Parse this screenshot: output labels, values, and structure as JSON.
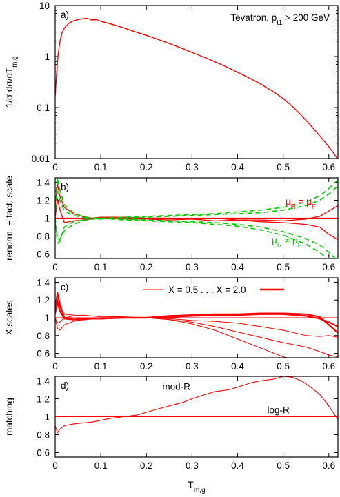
{
  "chart_data": [
    {
      "panel": "a",
      "type": "line",
      "scale": "log",
      "panel_label": "a)",
      "annotation": "Tevatron, p_t1 > 200 GeV",
      "ylabel": "1/σ  dσ/dT_m,g",
      "xlim": [
        0,
        0.62
      ],
      "ylim": [
        0.01,
        10
      ],
      "xticks": [
        0,
        0.1,
        0.2,
        0.3,
        0.4,
        0.5,
        0.6
      ],
      "xtick_labels": [
        "0",
        "0.1",
        "0.2",
        "0.3",
        "0.4",
        "0.5",
        "0.6"
      ],
      "yticks": [
        0.01,
        0.1,
        1,
        10
      ],
      "ytick_labels": [
        "0.01",
        "0.1",
        "1",
        "10"
      ],
      "series": [
        {
          "color": "#ff0000",
          "x": [
            0.0,
            0.003,
            0.006,
            0.01,
            0.015,
            0.02,
            0.03,
            0.04,
            0.05,
            0.06,
            0.07,
            0.08,
            0.09,
            0.1,
            0.12,
            0.14,
            0.16,
            0.18,
            0.2,
            0.22,
            0.25,
            0.28,
            0.3,
            0.33,
            0.35,
            0.38,
            0.4,
            0.43,
            0.45,
            0.48,
            0.5,
            0.52,
            0.54,
            0.56,
            0.58,
            0.6,
            0.61,
            0.62
          ],
          "values": [
            0.17,
            0.45,
            1.0,
            1.9,
            2.9,
            3.6,
            4.5,
            5.0,
            5.3,
            5.5,
            5.6,
            5.2,
            5.3,
            4.9,
            4.4,
            3.9,
            3.4,
            2.95,
            2.6,
            2.25,
            1.8,
            1.42,
            1.2,
            0.94,
            0.79,
            0.6,
            0.49,
            0.36,
            0.29,
            0.2,
            0.15,
            0.105,
            0.07,
            0.045,
            0.028,
            0.017,
            0.013,
            0.0095
          ]
        }
      ]
    },
    {
      "panel": "b",
      "type": "line",
      "panel_label": "b)",
      "ylabel": "renorm. + fact. scale",
      "annotations": [
        {
          "text": "μR = μF",
          "color": "#ff0000",
          "x": 0.505,
          "y": 1.15
        },
        {
          "text": "μR ≠ μF",
          "color": "#00cc00",
          "x": 0.475,
          "y": 0.72
        }
      ],
      "xlim": [
        0,
        0.62
      ],
      "ylim": [
        0.55,
        1.45
      ],
      "xticks": [
        0,
        0.1,
        0.2,
        0.3,
        0.4,
        0.5,
        0.6
      ],
      "xtick_labels": [
        "0",
        "0.1",
        "0.2",
        "0.3",
        "0.4",
        "0.5",
        "0.6"
      ],
      "yticks": [
        0.6,
        0.8,
        1,
        1.2,
        1.4
      ],
      "ytick_labels": [
        "0.6",
        "0.8",
        "1",
        "1.2",
        "1.4"
      ],
      "series": [
        {
          "color": "#ff0000",
          "dash": "",
          "width": 1.3,
          "x": [
            0,
            0.62
          ],
          "values": [
            1,
            1
          ]
        },
        {
          "color": "#ff0000",
          "dash": "",
          "width": 1.3,
          "x": [
            0.0,
            0.005,
            0.01,
            0.02,
            0.04,
            0.06,
            0.08,
            0.1,
            0.15,
            0.2,
            0.25,
            0.3,
            0.35,
            0.4,
            0.45,
            0.5,
            0.55,
            0.58,
            0.6,
            0.62
          ],
          "values": [
            1.15,
            1.38,
            1.25,
            1.12,
            1.05,
            1.02,
            1.0,
            1.01,
            1.01,
            1.0,
            1.0,
            0.99,
            1.0,
            0.98,
            0.98,
            0.97,
            0.99,
            1.02,
            1.08,
            1.14
          ]
        },
        {
          "color": "#ff0000",
          "dash": "",
          "width": 1.3,
          "x": [
            0.0,
            0.005,
            0.01,
            0.02,
            0.04,
            0.06,
            0.08,
            0.1,
            0.15,
            0.2,
            0.25,
            0.3,
            0.35,
            0.4,
            0.45,
            0.5,
            0.55,
            0.58,
            0.6,
            0.62
          ],
          "values": [
            1.0,
            1.22,
            1.1,
            0.95,
            0.97,
            0.98,
            0.99,
            1.0,
            0.99,
            0.99,
            0.98,
            0.99,
            0.97,
            0.98,
            0.96,
            0.95,
            0.93,
            0.9,
            0.82,
            0.76
          ]
        },
        {
          "color": "#00cc00",
          "dash": "7,5",
          "width": 1.6,
          "x": [
            0.0,
            0.005,
            0.01,
            0.02,
            0.04,
            0.06,
            0.08,
            0.1,
            0.15,
            0.2,
            0.25,
            0.3,
            0.35,
            0.4,
            0.45,
            0.5,
            0.55,
            0.58,
            0.6,
            0.62
          ],
          "values": [
            1.2,
            1.45,
            1.32,
            1.15,
            1.06,
            1.02,
            1.0,
            1.0,
            1.01,
            1.02,
            1.03,
            1.04,
            1.05,
            1.07,
            1.09,
            1.12,
            1.18,
            1.25,
            1.33,
            1.43
          ]
        },
        {
          "color": "#00cc00",
          "dash": "7,5",
          "width": 1.6,
          "x": [
            0.0,
            0.005,
            0.01,
            0.02,
            0.04,
            0.06,
            0.08,
            0.1,
            0.15,
            0.2,
            0.25,
            0.3,
            0.35,
            0.4,
            0.45,
            0.5,
            0.55,
            0.58,
            0.6,
            0.62
          ],
          "values": [
            1.1,
            1.3,
            1.2,
            1.08,
            1.03,
            1.01,
            0.99,
            0.99,
            1.0,
            1.01,
            1.02,
            1.03,
            1.04,
            1.05,
            1.06,
            1.09,
            1.14,
            1.2,
            1.27,
            1.36
          ]
        },
        {
          "color": "#00cc00",
          "dash": "7,5",
          "width": 1.6,
          "x": [
            0.0,
            0.005,
            0.01,
            0.02,
            0.04,
            0.06,
            0.08,
            0.1,
            0.15,
            0.2,
            0.25,
            0.3,
            0.35,
            0.4,
            0.45,
            0.5,
            0.55,
            0.58,
            0.6,
            0.62
          ],
          "values": [
            0.95,
            0.78,
            0.76,
            0.86,
            0.93,
            0.97,
            0.99,
            1.0,
            0.99,
            0.98,
            0.97,
            0.96,
            0.95,
            0.93,
            0.9,
            0.85,
            0.77,
            0.7,
            0.62,
            0.52
          ]
        },
        {
          "color": "#00cc00",
          "dash": "7,5",
          "width": 1.6,
          "x": [
            0.0,
            0.005,
            0.01,
            0.02,
            0.04,
            0.06,
            0.08,
            0.1,
            0.15,
            0.2,
            0.25,
            0.3,
            0.35,
            0.4,
            0.45,
            0.5,
            0.55,
            0.58,
            0.6,
            0.62
          ],
          "values": [
            1.0,
            0.72,
            0.74,
            0.9,
            0.96,
            0.98,
            1.0,
            1.0,
            0.98,
            0.97,
            0.96,
            0.95,
            0.93,
            0.91,
            0.87,
            0.81,
            0.71,
            0.62,
            0.53,
            0.42
          ]
        }
      ]
    },
    {
      "panel": "c",
      "type": "line",
      "panel_label": "c)",
      "ylabel": "X scales",
      "legend": {
        "label": "X = 0.5 . . . X = 2.0",
        "position": "top"
      },
      "xlim": [
        0,
        0.62
      ],
      "ylim": [
        0.55,
        1.45
      ],
      "xticks": [
        0,
        0.1,
        0.2,
        0.3,
        0.4,
        0.5,
        0.6
      ],
      "xtick_labels": [
        "0",
        "0.1",
        "0.2",
        "0.3",
        "0.4",
        "0.5",
        "0.6"
      ],
      "yticks": [
        0.6,
        0.8,
        1,
        1.2,
        1.4
      ],
      "ytick_labels": [
        "0.6",
        "0.8",
        "1",
        "1.2",
        "1.4"
      ],
      "series": [
        {
          "color": "#ff0000",
          "width": 1.1,
          "x": [
            0,
            0.62
          ],
          "values": [
            1,
            1
          ]
        },
        {
          "color": "#ff0000",
          "width": 1.0,
          "x": [
            0.0,
            0.005,
            0.01,
            0.02,
            0.04,
            0.06,
            0.08,
            0.1,
            0.15,
            0.2,
            0.25,
            0.3,
            0.35,
            0.4,
            0.45,
            0.5,
            0.55,
            0.58,
            0.6,
            0.62
          ],
          "values": [
            1.1,
            1.2,
            1.12,
            1.04,
            1.03,
            1.02,
            1.02,
            1.01,
            1.01,
            1.0,
            0.99,
            0.97,
            0.96,
            0.94,
            0.9,
            0.86,
            0.8,
            0.79,
            0.8,
            0.78
          ]
        },
        {
          "color": "#ff0000",
          "width": 1.0,
          "x": [
            0.0,
            0.005,
            0.01,
            0.02,
            0.04,
            0.06,
            0.08,
            0.1,
            0.15,
            0.2,
            0.25,
            0.3,
            0.35,
            0.4,
            0.45,
            0.5,
            0.55,
            0.58,
            0.6,
            0.62
          ],
          "values": [
            1.0,
            0.94,
            0.95,
            1.0,
            1.02,
            1.03,
            1.02,
            1.02,
            1.01,
            1.0,
            0.98,
            0.95,
            0.9,
            0.84,
            0.78,
            0.72,
            0.67,
            0.62,
            0.58,
            0.56
          ]
        },
        {
          "color": "#ff0000",
          "width": 1.0,
          "x": [
            0.0,
            0.005,
            0.01,
            0.02,
            0.04,
            0.06,
            0.08,
            0.1,
            0.15,
            0.2,
            0.25,
            0.3,
            0.35,
            0.4,
            0.45,
            0.5,
            0.55,
            0.58,
            0.6,
            0.62
          ],
          "values": [
            1.0,
            0.88,
            0.86,
            0.92,
            0.96,
            0.98,
            0.99,
            1.0,
            1.0,
            1.0,
            0.98,
            0.93,
            0.86,
            0.76,
            0.66,
            0.56,
            0.5,
            0.48,
            0.46,
            0.45
          ]
        },
        {
          "color": "#ff0000",
          "width": 2.2,
          "x": [
            0.0,
            0.005,
            0.01,
            0.02,
            0.04,
            0.06,
            0.08,
            0.1,
            0.15,
            0.2,
            0.25,
            0.3,
            0.35,
            0.4,
            0.45,
            0.5,
            0.55,
            0.58,
            0.6,
            0.62
          ],
          "values": [
            1.1,
            1.28,
            1.16,
            1.0,
            0.98,
            0.98,
            0.99,
            0.99,
            1.0,
            1.0,
            1.02,
            1.03,
            1.04,
            1.04,
            1.05,
            1.05,
            1.04,
            1.01,
            0.92,
            0.83
          ]
        },
        {
          "color": "#ff0000",
          "width": 2.2,
          "x": [
            0.0,
            0.005,
            0.01,
            0.02,
            0.04,
            0.06,
            0.08,
            0.1,
            0.15,
            0.2,
            0.25,
            0.3,
            0.35,
            0.4,
            0.45,
            0.5,
            0.55,
            0.58,
            0.6,
            0.62
          ],
          "values": [
            1.05,
            1.18,
            1.08,
            0.99,
            0.98,
            0.99,
            0.99,
            0.99,
            1.0,
            1.0,
            1.01,
            1.02,
            1.03,
            1.03,
            1.04,
            1.04,
            1.02,
            0.99,
            0.95,
            0.9
          ]
        }
      ]
    },
    {
      "panel": "d",
      "type": "line",
      "panel_label": "d)",
      "ylabel": "matching",
      "xlabel": "T_m,g",
      "annotations": [
        {
          "text": "mod-R",
          "color": "#000000",
          "x": 0.235,
          "y": 1.3
        },
        {
          "text": "log-R",
          "color": "#000000",
          "x": 0.465,
          "y": 1.04
        }
      ],
      "xlim": [
        0,
        0.62
      ],
      "ylim": [
        0.55,
        1.45
      ],
      "xticks": [
        0,
        0.1,
        0.2,
        0.3,
        0.4,
        0.5,
        0.6
      ],
      "xtick_labels": [
        "0",
        "0.1",
        "0.2",
        "0.3",
        "0.4",
        "0.5",
        "0.6"
      ],
      "yticks": [
        0.6,
        0.8,
        1,
        1.2,
        1.4
      ],
      "ytick_labels": [
        "0.6",
        "0.8",
        "1",
        "1.2",
        "1.4"
      ],
      "series": [
        {
          "color": "#ff0000",
          "width": 1.1,
          "x": [
            0,
            0.62
          ],
          "values": [
            1,
            1
          ]
        },
        {
          "color": "#ff0000",
          "width": 1.1,
          "x": [
            0.0,
            0.005,
            0.01,
            0.02,
            0.04,
            0.06,
            0.08,
            0.1,
            0.12,
            0.15,
            0.18,
            0.2,
            0.22,
            0.25,
            0.28,
            0.3,
            0.33,
            0.35,
            0.38,
            0.4,
            0.43,
            0.45,
            0.48,
            0.5,
            0.52,
            0.54,
            0.56,
            0.58,
            0.6,
            0.62
          ],
          "values": [
            0.9,
            0.82,
            0.86,
            0.9,
            0.92,
            0.93,
            0.94,
            0.96,
            0.98,
            1.0,
            1.02,
            1.05,
            1.08,
            1.12,
            1.16,
            1.2,
            1.25,
            1.28,
            1.3,
            1.33,
            1.38,
            1.4,
            1.42,
            1.45,
            1.44,
            1.4,
            1.33,
            1.25,
            1.12,
            0.97
          ]
        }
      ]
    }
  ]
}
